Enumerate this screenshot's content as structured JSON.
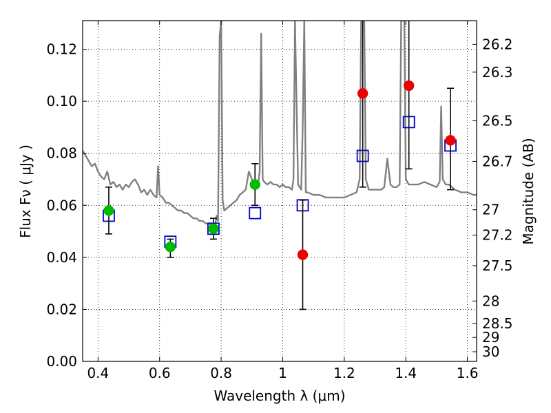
{
  "chart_data": {
    "type": "scatter",
    "xlabel": "Wavelength  λ (μm)",
    "ylabel": "Flux  Fν ( μJy )",
    "ylabel_right": "Magnitude (AB)",
    "xlim": [
      0.35,
      1.63
    ],
    "ylim": [
      0.0,
      0.131
    ],
    "grid": true,
    "x_ticks": [
      0.4,
      0.6,
      0.8,
      1.0,
      1.2,
      1.4,
      1.6
    ],
    "x_tick_labels": [
      "0.4",
      "0.6",
      "0.8",
      "1",
      "1.2",
      "1.4",
      "1.6"
    ],
    "y_ticks": [
      0.0,
      0.02,
      0.04,
      0.06,
      0.08,
      0.1,
      0.12
    ],
    "y_tick_labels": [
      "0.00",
      "0.02",
      "0.04",
      "0.06",
      "0.08",
      "0.10",
      "0.12"
    ],
    "right_ticks": [
      {
        "label": "26.2",
        "flux": 0.1219
      },
      {
        "label": "26.3",
        "flux": 0.1112
      },
      {
        "label": "26.5",
        "flux": 0.0925
      },
      {
        "label": "26.7",
        "flux": 0.0769
      },
      {
        "label": "27",
        "flux": 0.0583
      },
      {
        "label": "27.2",
        "flux": 0.0485
      },
      {
        "label": "27.5",
        "flux": 0.0368
      },
      {
        "label": "28",
        "flux": 0.0232
      },
      {
        "label": "28.5",
        "flux": 0.0146
      },
      {
        "label": "29",
        "flux": 0.0092
      },
      {
        "label": "30",
        "flux": 0.0037
      }
    ],
    "series": [
      {
        "kind": "spectrum",
        "color": "#808080",
        "points": [
          [
            0.35,
            0.081
          ],
          [
            0.36,
            0.079
          ],
          [
            0.37,
            0.077
          ],
          [
            0.38,
            0.075
          ],
          [
            0.39,
            0.076
          ],
          [
            0.4,
            0.073
          ],
          [
            0.41,
            0.071
          ],
          [
            0.42,
            0.07
          ],
          [
            0.43,
            0.073
          ],
          [
            0.44,
            0.068
          ],
          [
            0.45,
            0.069
          ],
          [
            0.46,
            0.067
          ],
          [
            0.47,
            0.068
          ],
          [
            0.48,
            0.066
          ],
          [
            0.49,
            0.068
          ],
          [
            0.5,
            0.067
          ],
          [
            0.51,
            0.069
          ],
          [
            0.52,
            0.07
          ],
          [
            0.53,
            0.068
          ],
          [
            0.54,
            0.065
          ],
          [
            0.55,
            0.066
          ],
          [
            0.56,
            0.064
          ],
          [
            0.57,
            0.066
          ],
          [
            0.58,
            0.064
          ],
          [
            0.59,
            0.063
          ],
          [
            0.595,
            0.075
          ],
          [
            0.6,
            0.064
          ],
          [
            0.61,
            0.063
          ],
          [
            0.62,
            0.061
          ],
          [
            0.63,
            0.061
          ],
          [
            0.64,
            0.06
          ],
          [
            0.65,
            0.059
          ],
          [
            0.66,
            0.058
          ],
          [
            0.67,
            0.058
          ],
          [
            0.68,
            0.057
          ],
          [
            0.69,
            0.057
          ],
          [
            0.7,
            0.056
          ],
          [
            0.71,
            0.055
          ],
          [
            0.72,
            0.055
          ],
          [
            0.73,
            0.054
          ],
          [
            0.74,
            0.054
          ],
          [
            0.75,
            0.053
          ],
          [
            0.76,
            0.053
          ],
          [
            0.77,
            0.052
          ],
          [
            0.78,
            0.052
          ],
          [
            0.785,
            0.056
          ],
          [
            0.79,
            0.054
          ],
          [
            0.795,
            0.125
          ],
          [
            0.8,
            0.131
          ],
          [
            0.805,
            0.062
          ],
          [
            0.81,
            0.058
          ],
          [
            0.82,
            0.059
          ],
          [
            0.83,
            0.06
          ],
          [
            0.84,
            0.061
          ],
          [
            0.85,
            0.062
          ],
          [
            0.86,
            0.064
          ],
          [
            0.87,
            0.065
          ],
          [
            0.88,
            0.066
          ],
          [
            0.89,
            0.073
          ],
          [
            0.9,
            0.07
          ],
          [
            0.91,
            0.066
          ],
          [
            0.92,
            0.068
          ],
          [
            0.925,
            0.073
          ],
          [
            0.93,
            0.126
          ],
          [
            0.935,
            0.07
          ],
          [
            0.94,
            0.069
          ],
          [
            0.95,
            0.068
          ],
          [
            0.96,
            0.069
          ],
          [
            0.97,
            0.068
          ],
          [
            0.98,
            0.068
          ],
          [
            0.99,
            0.067
          ],
          [
            1.0,
            0.068
          ],
          [
            1.01,
            0.067
          ],
          [
            1.02,
            0.067
          ],
          [
            1.03,
            0.066
          ],
          [
            1.035,
            0.07
          ],
          [
            1.04,
            0.131
          ],
          [
            1.05,
            0.068
          ],
          [
            1.06,
            0.066
          ],
          [
            1.065,
            0.09
          ],
          [
            1.07,
            0.131
          ],
          [
            1.075,
            0.065
          ],
          [
            1.08,
            0.065
          ],
          [
            1.1,
            0.064
          ],
          [
            1.12,
            0.064
          ],
          [
            1.14,
            0.063
          ],
          [
            1.16,
            0.063
          ],
          [
            1.18,
            0.063
          ],
          [
            1.2,
            0.063
          ],
          [
            1.22,
            0.064
          ],
          [
            1.24,
            0.065
          ],
          [
            1.25,
            0.07
          ],
          [
            1.255,
            0.131
          ],
          [
            1.265,
            0.131
          ],
          [
            1.27,
            0.07
          ],
          [
            1.28,
            0.066
          ],
          [
            1.3,
            0.066
          ],
          [
            1.32,
            0.066
          ],
          [
            1.33,
            0.067
          ],
          [
            1.34,
            0.078
          ],
          [
            1.35,
            0.068
          ],
          [
            1.36,
            0.067
          ],
          [
            1.37,
            0.067
          ],
          [
            1.38,
            0.068
          ],
          [
            1.385,
            0.131
          ],
          [
            1.395,
            0.131
          ],
          [
            1.4,
            0.07
          ],
          [
            1.41,
            0.068
          ],
          [
            1.42,
            0.068
          ],
          [
            1.44,
            0.068
          ],
          [
            1.46,
            0.069
          ],
          [
            1.48,
            0.068
          ],
          [
            1.5,
            0.067
          ],
          [
            1.51,
            0.069
          ],
          [
            1.515,
            0.098
          ],
          [
            1.52,
            0.07
          ],
          [
            1.53,
            0.068
          ],
          [
            1.54,
            0.068
          ],
          [
            1.55,
            0.067
          ],
          [
            1.56,
            0.066
          ],
          [
            1.58,
            0.065
          ],
          [
            1.6,
            0.065
          ],
          [
            1.62,
            0.064
          ],
          [
            1.63,
            0.064
          ]
        ]
      },
      {
        "kind": "model",
        "marker": "open-square",
        "color": "#0000cc",
        "points": [
          [
            0.435,
            0.056
          ],
          [
            0.635,
            0.046
          ],
          [
            0.775,
            0.051
          ],
          [
            0.91,
            0.057
          ],
          [
            1.065,
            0.06
          ],
          [
            1.26,
            0.079
          ],
          [
            1.41,
            0.092
          ],
          [
            1.545,
            0.083
          ]
        ]
      },
      {
        "kind": "detections",
        "marker": "filled-circle",
        "color": "#00bb00",
        "points": [
          {
            "x": 0.435,
            "y": 0.058,
            "lo": 0.049,
            "hi": 0.067
          },
          {
            "x": 0.635,
            "y": 0.044,
            "lo": 0.04,
            "hi": 0.047
          },
          {
            "x": 0.775,
            "y": 0.051,
            "lo": 0.047,
            "hi": 0.055
          },
          {
            "x": 0.91,
            "y": 0.068,
            "lo": 0.06,
            "hi": 0.076
          }
        ]
      },
      {
        "kind": "upper-band",
        "marker": "filled-circle",
        "color": "#ee0000",
        "points": [
          {
            "x": 1.065,
            "y": 0.041,
            "lo": 0.02,
            "hi": 0.062
          },
          {
            "x": 1.26,
            "y": 0.103,
            "lo": 0.067,
            "hi": 0.131
          },
          {
            "x": 1.41,
            "y": 0.106,
            "lo": 0.074,
            "hi": 0.131
          },
          {
            "x": 1.545,
            "y": 0.085,
            "lo": 0.066,
            "hi": 0.105
          }
        ]
      }
    ]
  }
}
